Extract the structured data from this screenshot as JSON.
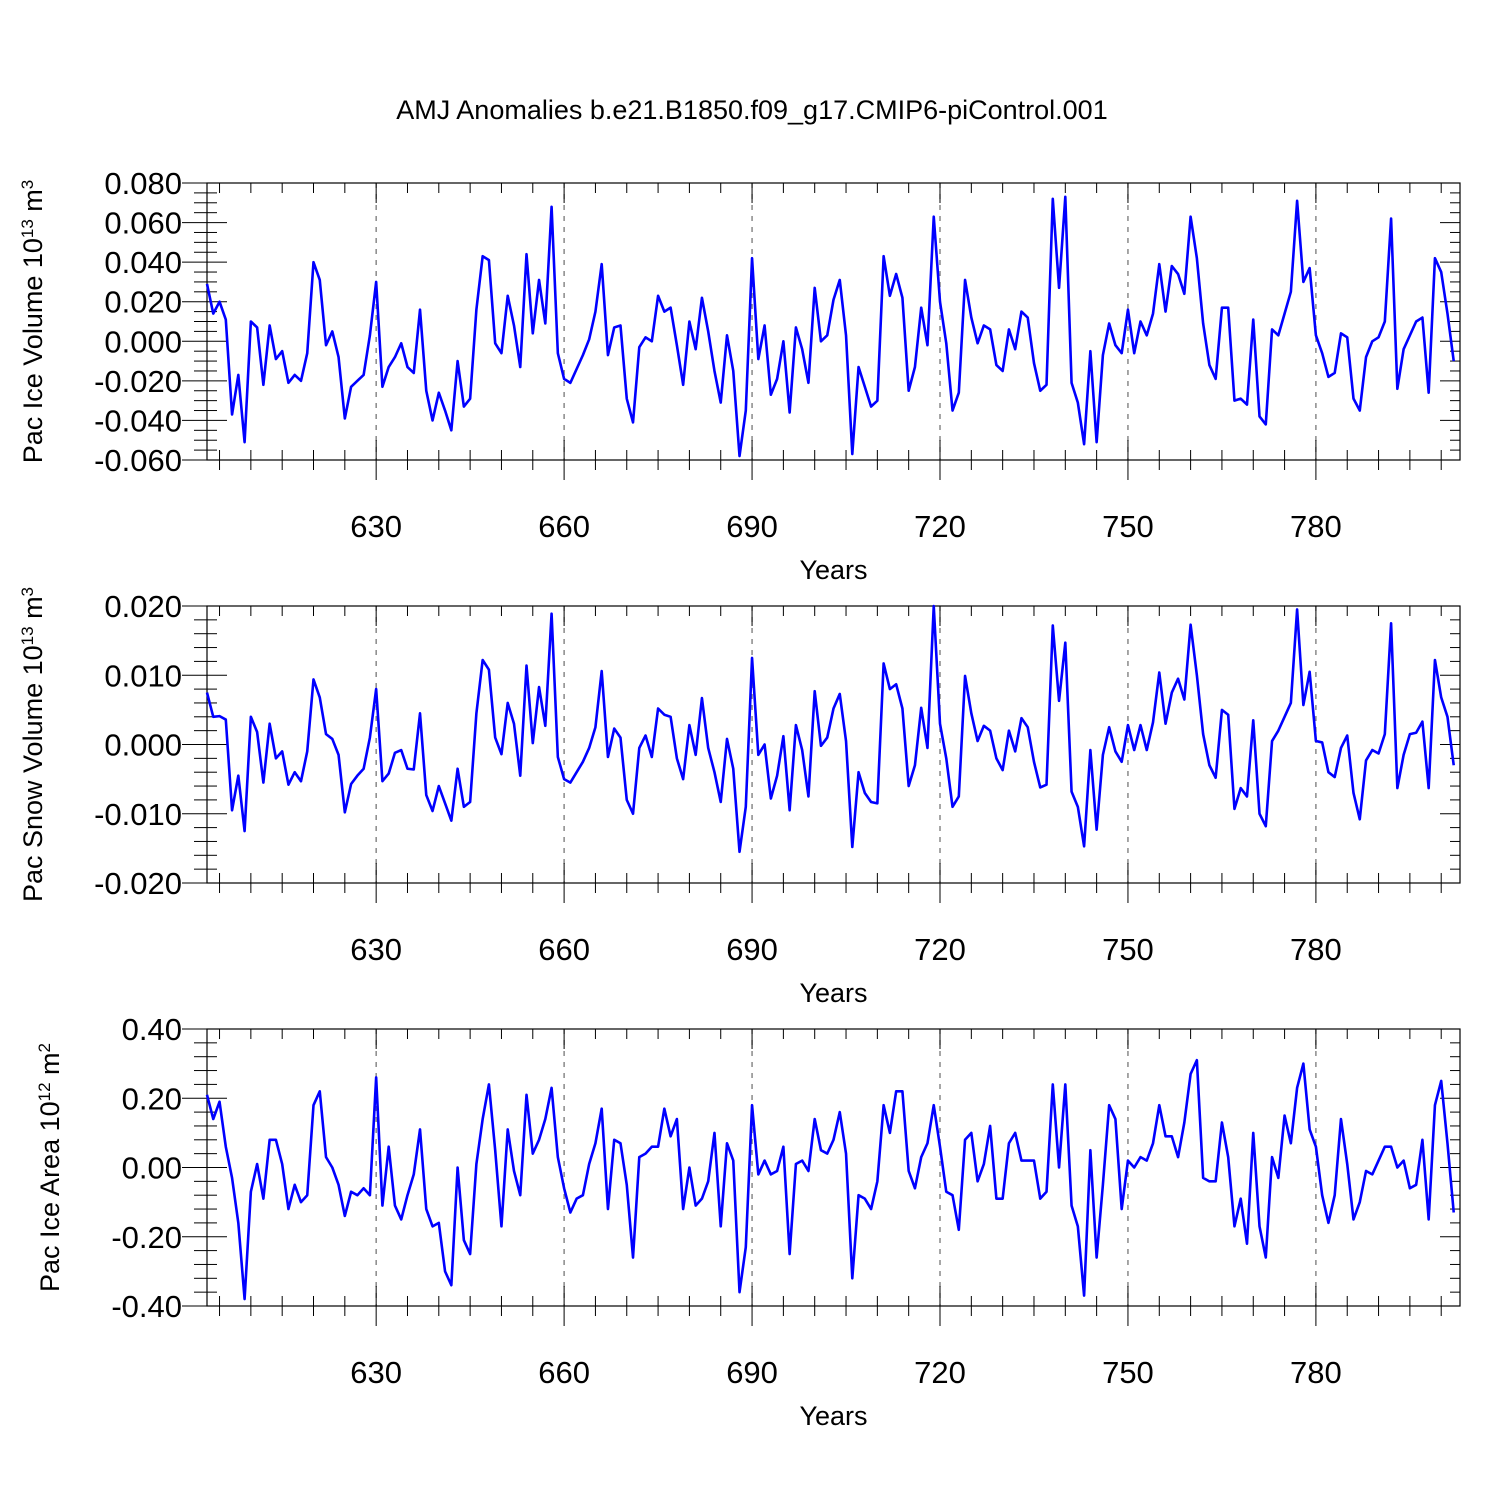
{
  "figure": {
    "title": "AMJ Anomalies b.e21.B1850.f09_g17.CMIP6-piControl.001"
  },
  "chart_data": [
    {
      "type": "line",
      "title": "",
      "xlabel": "Years",
      "ylabel": {
        "text": "Pac Ice Volume 10",
        "exp": "13",
        "unit": " m",
        "unit_exp": "3"
      },
      "xlim": [
        603,
        803
      ],
      "ylim": [
        -0.06,
        0.08
      ],
      "xticks": [
        630,
        660,
        690,
        720,
        750,
        780
      ],
      "xtick_labels": [
        "630",
        "660",
        "690",
        "720",
        "750",
        "780"
      ],
      "yticks": [
        -0.06,
        -0.04,
        -0.02,
        0.0,
        0.02,
        0.04,
        0.06,
        0.08
      ],
      "ytick_labels": [
        "-0.060",
        "-0.040",
        "-0.020",
        "0.000",
        "0.020",
        "0.040",
        "0.060",
        "0.080"
      ],
      "yminor_step": 0.005,
      "xminor_step": 5,
      "grid": "vertical dashed at major x ticks",
      "x_start": 603,
      "series": [
        {
          "color": "#0000ff",
          "values": [
            0.029,
            0.014,
            0.02,
            0.011,
            -0.037,
            -0.017,
            -0.051,
            0.01,
            0.007,
            -0.022,
            0.008,
            -0.009,
            -0.005,
            -0.021,
            -0.017,
            -0.02,
            -0.006,
            0.04,
            0.031,
            -0.002,
            0.005,
            -0.008,
            -0.039,
            -0.023,
            -0.02,
            -0.017,
            0.003,
            0.03,
            -0.023,
            -0.013,
            -0.008,
            -0.001,
            -0.013,
            -0.016,
            0.016,
            -0.025,
            -0.04,
            -0.026,
            -0.035,
            -0.045,
            -0.01,
            -0.033,
            -0.029,
            0.016,
            0.043,
            0.041,
            -0.001,
            -0.006,
            0.023,
            0.008,
            -0.013,
            0.044,
            0.004,
            0.031,
            0.009,
            0.068,
            -0.006,
            -0.019,
            -0.021,
            -0.014,
            -0.007,
            0.001,
            0.015,
            0.039,
            -0.007,
            0.007,
            0.008,
            -0.029,
            -0.041,
            -0.003,
            0.002,
            -0.0,
            0.023,
            0.015,
            0.017,
            -0.002,
            -0.022,
            0.01,
            -0.004,
            0.022,
            0.005,
            -0.015,
            -0.031,
            0.003,
            -0.015,
            -0.058,
            -0.035,
            0.042,
            -0.009,
            0.008,
            -0.027,
            -0.019,
            0.0,
            -0.036,
            0.007,
            -0.004,
            -0.021,
            0.027,
            0.0,
            0.003,
            0.021,
            0.031,
            0.003,
            -0.057,
            -0.013,
            -0.023,
            -0.033,
            -0.03,
            0.043,
            0.023,
            0.034,
            0.022,
            -0.025,
            -0.013,
            0.017,
            -0.002,
            0.063,
            0.02,
            -0.001,
            -0.035,
            -0.026,
            0.031,
            0.012,
            -0.001,
            0.008,
            0.006,
            -0.012,
            -0.015,
            0.006,
            -0.004,
            0.015,
            0.012,
            -0.011,
            -0.025,
            -0.022,
            0.072,
            0.027,
            0.073,
            -0.021,
            -0.031,
            -0.052,
            -0.005,
            -0.051,
            -0.007,
            0.009,
            -0.002,
            -0.006,
            0.016,
            -0.006,
            0.01,
            0.003,
            0.014,
            0.039,
            0.015,
            0.038,
            0.034,
            0.024,
            0.063,
            0.042,
            0.009,
            -0.012,
            -0.019,
            0.017,
            0.017,
            -0.03,
            -0.029,
            -0.032,
            0.011,
            -0.038,
            -0.042,
            0.006,
            0.003,
            0.014,
            0.025,
            0.071,
            0.03,
            0.037,
            0.003,
            -0.006,
            -0.018,
            -0.016,
            0.004,
            0.002,
            -0.029,
            -0.035,
            -0.008,
            0.0,
            0.002,
            0.01,
            0.062,
            -0.024,
            -0.004,
            0.003,
            0.01,
            0.012,
            -0.026,
            0.042,
            0.035,
            0.014,
            -0.01
          ]
        }
      ]
    },
    {
      "type": "line",
      "title": "",
      "xlabel": "Years",
      "ylabel": {
        "text": "Pac Snow Volume 10",
        "exp": "13",
        "unit": " m",
        "unit_exp": "3"
      },
      "xlim": [
        603,
        803
      ],
      "ylim": [
        -0.02,
        0.02
      ],
      "xticks": [
        630,
        660,
        690,
        720,
        750,
        780
      ],
      "xtick_labels": [
        "630",
        "660",
        "690",
        "720",
        "750",
        "780"
      ],
      "yticks": [
        -0.02,
        -0.01,
        0.0,
        0.01,
        0.02
      ],
      "ytick_labels": [
        "-0.020",
        "-0.010",
        "0.000",
        "0.010",
        "0.020"
      ],
      "yminor_step": 0.002,
      "xminor_step": 5,
      "grid": "vertical dashed at major x ticks",
      "x_start": 603,
      "series": [
        {
          "color": "#0000ff",
          "values": [
            0.0075,
            0.004,
            0.0041,
            0.0036,
            -0.0095,
            -0.0045,
            -0.0125,
            0.004,
            0.0018,
            -0.0055,
            0.003,
            -0.002,
            -0.001,
            -0.0058,
            -0.004,
            -0.0053,
            -0.001,
            0.0094,
            0.0068,
            0.0015,
            0.0008,
            -0.0015,
            -0.0098,
            -0.0057,
            -0.0045,
            -0.0035,
            0.001,
            0.008,
            -0.0053,
            -0.0042,
            -0.0012,
            -0.0008,
            -0.0035,
            -0.0036,
            0.0045,
            -0.0073,
            -0.0096,
            -0.006,
            -0.0085,
            -0.011,
            -0.0035,
            -0.009,
            -0.0083,
            0.0045,
            0.0122,
            0.0108,
            0.001,
            -0.0014,
            0.006,
            0.003,
            -0.0045,
            0.0114,
            0.0002,
            0.0083,
            0.0027,
            0.0189,
            -0.0018,
            -0.005,
            -0.0055,
            -0.004,
            -0.0025,
            -0.0005,
            0.0025,
            0.0106,
            -0.0018,
            0.0023,
            0.001,
            -0.008,
            -0.01,
            -0.0005,
            0.0013,
            -0.0018,
            0.0052,
            0.0043,
            0.004,
            -0.002,
            -0.005,
            0.0028,
            -0.0015,
            0.0067,
            -0.0005,
            -0.004,
            -0.0083,
            0.0008,
            -0.0035,
            -0.0155,
            -0.009,
            0.0125,
            -0.0015,
            0.0,
            -0.0078,
            -0.0045,
            0.0012,
            -0.0095,
            0.0028,
            -0.0008,
            -0.0075,
            0.0077,
            -0.0002,
            0.001,
            0.0052,
            0.0073,
            0.0005,
            -0.0148,
            -0.004,
            -0.007,
            -0.0083,
            -0.0085,
            0.0117,
            0.008,
            0.0087,
            0.0052,
            -0.006,
            -0.003,
            0.0053,
            -0.0005,
            0.02,
            0.003,
            -0.002,
            -0.009,
            -0.0075,
            0.0099,
            0.0045,
            0.0005,
            0.0027,
            0.002,
            -0.002,
            -0.0037,
            0.002,
            -0.001,
            0.0038,
            0.0025,
            -0.0025,
            -0.0062,
            -0.0058,
            0.0172,
            0.0063,
            0.0147,
            -0.0068,
            -0.009,
            -0.0147,
            -0.0008,
            -0.0123,
            -0.0015,
            0.0025,
            -0.001,
            -0.0025,
            0.0028,
            -0.0008,
            0.0028,
            -0.0008,
            0.0032,
            0.0104,
            0.003,
            0.0075,
            0.0095,
            0.0065,
            0.0173,
            0.01,
            0.0015,
            -0.003,
            -0.0048,
            0.005,
            0.0043,
            -0.0093,
            -0.0063,
            -0.0075,
            0.0035,
            -0.01,
            -0.0118,
            0.0005,
            0.002,
            0.004,
            0.006,
            0.0195,
            0.0057,
            0.0105,
            0.0005,
            0.0003,
            -0.004,
            -0.0047,
            -0.0005,
            0.0013,
            -0.007,
            -0.0108,
            -0.0023,
            -0.0008,
            -0.0013,
            0.0015,
            0.0175,
            -0.0063,
            -0.0015,
            0.0015,
            0.0017,
            0.0033,
            -0.0063,
            0.0122,
            0.0068,
            0.004,
            -0.003
          ]
        }
      ]
    },
    {
      "type": "line",
      "title": "",
      "xlabel": "Years",
      "ylabel": {
        "text": "Pac Ice Area 10",
        "exp": "12",
        "unit": " m",
        "unit_exp": "2"
      },
      "xlim": [
        603,
        803
      ],
      "ylim": [
        -0.4,
        0.4
      ],
      "xticks": [
        630,
        660,
        690,
        720,
        750,
        780
      ],
      "xtick_labels": [
        "630",
        "660",
        "690",
        "720",
        "750",
        "780"
      ],
      "yticks": [
        -0.4,
        -0.2,
        0.0,
        0.2,
        0.4
      ],
      "ytick_labels": [
        "-0.40",
        "-0.20",
        "0.00",
        "0.20",
        "0.40"
      ],
      "yminor_step": 0.04,
      "xminor_step": 5,
      "grid": "vertical dashed at major x ticks",
      "x_start": 603,
      "series": [
        {
          "color": "#0000ff",
          "values": [
            0.21,
            0.14,
            0.19,
            0.06,
            -0.03,
            -0.16,
            -0.38,
            -0.07,
            0.01,
            -0.09,
            0.08,
            0.08,
            0.01,
            -0.12,
            -0.05,
            -0.1,
            -0.08,
            0.18,
            0.22,
            0.03,
            0.0,
            -0.05,
            -0.14,
            -0.07,
            -0.08,
            -0.06,
            -0.08,
            0.26,
            -0.11,
            0.06,
            -0.11,
            -0.15,
            -0.08,
            -0.02,
            0.11,
            -0.12,
            -0.17,
            -0.16,
            -0.3,
            -0.34,
            0.0,
            -0.21,
            -0.25,
            0.01,
            0.14,
            0.24,
            0.05,
            -0.17,
            0.11,
            -0.01,
            -0.08,
            0.21,
            0.04,
            0.08,
            0.14,
            0.23,
            0.03,
            -0.06,
            -0.13,
            -0.09,
            -0.08,
            0.01,
            0.07,
            0.17,
            -0.12,
            0.08,
            0.07,
            -0.05,
            -0.26,
            0.03,
            0.04,
            0.06,
            0.06,
            0.17,
            0.09,
            0.14,
            -0.12,
            0.0,
            -0.11,
            -0.09,
            -0.04,
            0.1,
            -0.17,
            0.07,
            0.02,
            -0.36,
            -0.23,
            0.18,
            -0.02,
            0.02,
            -0.02,
            -0.01,
            0.06,
            -0.25,
            0.01,
            0.02,
            -0.01,
            0.14,
            0.05,
            0.04,
            0.08,
            0.16,
            0.04,
            -0.32,
            -0.08,
            -0.09,
            -0.12,
            -0.04,
            0.18,
            0.1,
            0.22,
            0.22,
            -0.01,
            -0.06,
            0.03,
            0.07,
            0.18,
            0.06,
            -0.07,
            -0.08,
            -0.18,
            0.08,
            0.1,
            -0.04,
            0.01,
            0.12,
            -0.09,
            -0.09,
            0.07,
            0.1,
            0.02,
            0.02,
            0.02,
            -0.09,
            -0.07,
            0.24,
            0.0,
            0.24,
            -0.11,
            -0.17,
            -0.37,
            0.05,
            -0.26,
            -0.05,
            0.18,
            0.14,
            -0.12,
            0.02,
            0.0,
            0.03,
            0.02,
            0.07,
            0.18,
            0.09,
            0.09,
            0.03,
            0.13,
            0.27,
            0.31,
            -0.03,
            -0.04,
            -0.04,
            0.13,
            0.03,
            -0.17,
            -0.09,
            -0.22,
            0.1,
            -0.17,
            -0.26,
            0.03,
            -0.03,
            0.15,
            0.07,
            0.23,
            0.3,
            0.11,
            0.06,
            -0.08,
            -0.16,
            -0.08,
            0.14,
            0.01,
            -0.15,
            -0.1,
            -0.01,
            -0.02,
            0.02,
            0.06,
            0.06,
            0.0,
            0.02,
            -0.06,
            -0.05,
            0.08,
            -0.15,
            0.18,
            0.25,
            0.07,
            -0.13
          ]
        }
      ]
    }
  ]
}
